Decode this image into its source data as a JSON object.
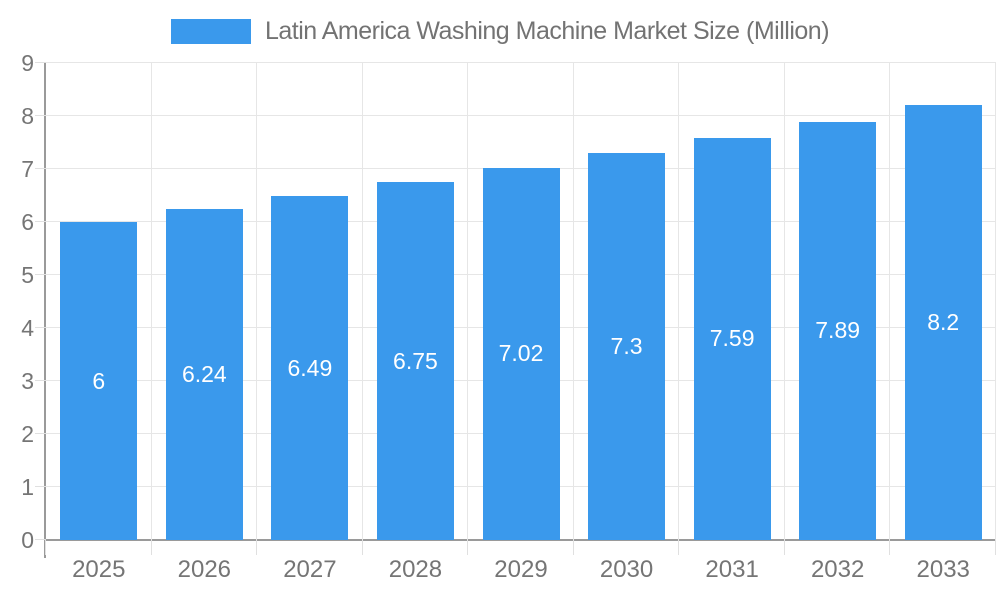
{
  "chart_data": {
    "type": "bar",
    "title": "Latin America Washing Machine Market Size (Million)",
    "legend": {
      "position": "top",
      "entries": [
        "Latin America Washing Machine Market Size (Million)"
      ]
    },
    "categories": [
      "2025",
      "2026",
      "2027",
      "2028",
      "2029",
      "2030",
      "2031",
      "2032",
      "2033"
    ],
    "values": [
      6,
      6.24,
      6.49,
      6.75,
      7.02,
      7.3,
      7.59,
      7.89,
      8.2
    ],
    "value_labels": [
      "6",
      "6.24",
      "6.49",
      "6.75",
      "7.02",
      "7.3",
      "7.59",
      "7.89",
      "8.2"
    ],
    "value_label_position": "inside-center",
    "xlabel": "",
    "ylabel": "",
    "ylim": [
      0,
      9
    ],
    "ytick_step": 1,
    "ytick_labels": [
      "0",
      "1",
      "2",
      "3",
      "4",
      "5",
      "6",
      "7",
      "8",
      "9"
    ],
    "grid": true,
    "colors": {
      "bar": "#3a99ec",
      "grid": "#e6e6e6",
      "axis": "#9a9a9a",
      "tick": "#e0e0e0",
      "axis_text": "#757575",
      "bar_label_text": "#ffffff",
      "legend_text": "#737373",
      "background": "#ffffff"
    }
  }
}
